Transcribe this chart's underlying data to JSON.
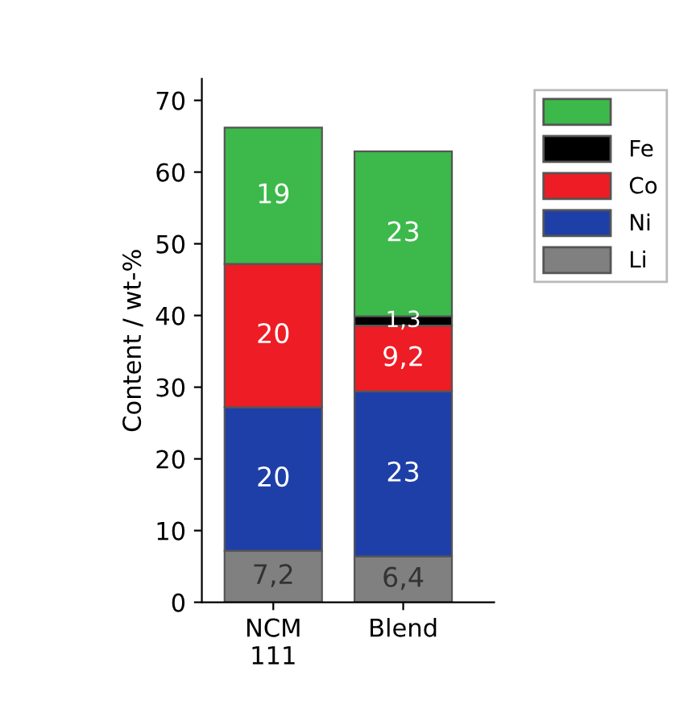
{
  "chart_data": {
    "type": "bar",
    "stacked": true,
    "ylabel": "Content / wt-%",
    "categories": [
      "NCM\n111",
      "Blend"
    ],
    "series": [
      {
        "name": "Li",
        "color": "#808080",
        "values": [
          7.2,
          6.4
        ],
        "value_labels": [
          "7,2",
          "6,4"
        ]
      },
      {
        "name": "Ni",
        "color": "#1f3fa8",
        "values": [
          20,
          23
        ],
        "value_labels": [
          "20",
          "23"
        ]
      },
      {
        "name": "Co",
        "color": "#ee1c24",
        "values": [
          20,
          9.2
        ],
        "value_labels": [
          "20",
          "9,2"
        ]
      },
      {
        "name": "Fe",
        "color": "#000000",
        "values": [
          null,
          1.3
        ],
        "value_labels": [
          null,
          "1,3"
        ]
      },
      {
        "color": "#3cb94a",
        "values": [
          19,
          23
        ],
        "value_labels": [
          "19",
          "23"
        ]
      }
    ],
    "ylim": [
      0,
      73
    ],
    "yticks": [
      0,
      10,
      20,
      30,
      40,
      50,
      60,
      70
    ],
    "grid": false,
    "legend": "top right"
  }
}
